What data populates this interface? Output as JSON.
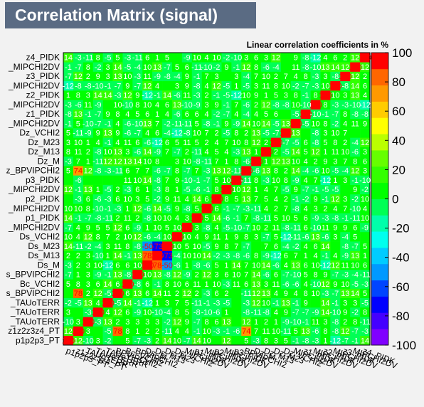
{
  "chart_data": {
    "type": "heatmap",
    "title": "Correlation Matrix (signal)",
    "subtitle": "Linear correlation coefficients in %",
    "variables": [
      "p1p2p3_PT",
      "z1z2z3z4_PT",
      "...TAUoTERR",
      "...TAUoTERR",
      "..._TAUoTERR",
      "...s_BPVIPCHI2",
      "Bc_VCHI2",
      "...s_BPVIPCHI2",
      "Ds_M",
      "Ds_M13",
      "Ds_M23",
      "Ds_VCHI2",
      "..._MIPCHI2DV",
      "p1_PIDK",
      "..._MIPCHI2DV",
      "p2_PIDK",
      "..._MIPCHI2DV",
      "p3_PIDK",
      "...z_BPVIPCHI2",
      "Dz_M",
      "Dz_M13",
      "Dz_M23",
      "Dz_VCHI2",
      "..._MIPCHI2DV",
      "z1_PIDK",
      "..._MIPCHI2DV",
      "z2_PIDK",
      "..._MIPCHI2DV",
      "z3_PIDK",
      "..._MIPCHI2DV",
      "z4_PIDK"
    ],
    "y_tick_labels": [
      "p1p2p3_PT",
      "z1z2z3z4_PT",
      "_TAUoTERR",
      "_TAUoTERR",
      "_TAUoTERR",
      "s_BPVIPCHI2",
      "Bc_VCHI2",
      "s_BPVIPCHI2",
      "Ds_M",
      "Ds_M13",
      "Ds_M23",
      "Ds_VCHI2",
      "_MIPCHI2DV",
      "p1_PIDK",
      "_MIPCHI2DV",
      "p2_PIDK",
      "_MIPCHI2DV",
      "p3_PIDK",
      "z_BPVIPCHI2",
      "Dz_M",
      "Dz_M13",
      "Dz_M23",
      "Dz_VCHI2",
      "_MIPCHI2DV",
      "z1_PIDK",
      "_MIPCHI2DV",
      "z2_PIDK",
      "_MIPCHI2DV",
      "z3_PIDK",
      "_MIPCHI2DV",
      "z4_PIDK"
    ],
    "x_tick_labels": [
      "p1p2p3_PT",
      "z1z2z3z4_PT",
      "TAUoTERR",
      "TAUoTERR",
      "TAUoTERR",
      "BPVIPCHI2",
      "Bc_VCHI2",
      "BPVIPCHI2",
      "Ds_M",
      "Ds_M13",
      "Ds_M23",
      "Ds_VCHI2",
      "MIPCHI2DV",
      "p1_PIDK",
      "MIPCHI2DV",
      "p2_PIDK",
      "MIPCHI2DV",
      "p3_PIDK",
      "BPVIPCHI2",
      "Dz_M",
      "Dz_M13",
      "Dz_M23",
      "Dz_VCHI2",
      "MIPCHI2DV",
      "z1_PIDK",
      "MIPCHI2DV",
      "z2_PIDK",
      "MIPCHI2DV",
      "z3_PIDK",
      "MIPCHI2DV",
      "z4_PIDK"
    ],
    "x_labels_note": "x tick labels are drawn rotated and heavily overlapping",
    "zlim": [
      -100,
      100
    ],
    "z_ticks": [
      -100,
      -80,
      -60,
      -40,
      -20,
      0,
      20,
      40,
      60,
      80,
      100
    ],
    "palette_colors": [
      "#8000ff",
      "#4400ff",
      "#0000ff",
      "#0044ff",
      "#0099ff",
      "#00ccff",
      "#00ffee",
      "#00ffaa",
      "#00ff55",
      "#00ff00",
      "#33ff00",
      "#66ff00",
      "#bbff00",
      "#ffff00",
      "#ffcc00",
      "#ff9900",
      "#ff6600",
      "#ff0000"
    ],
    "diagonal": 100,
    "notable_cells": [
      {
        "row": "Ds_M23",
        "col": "Ds_M13",
        "value": -73
      },
      {
        "row": "Ds_M23",
        "col": "Ds_M",
        "value": -50
      },
      {
        "row": "Ds_M13",
        "col": "Ds_M",
        "value": 78
      },
      {
        "row": "...s_BPVIPCHI2",
        "col": "z1z2z3z4_PT",
        "value": 78
      },
      {
        "row": "...z_BPVIPCHI2",
        "col": "z1z2z3z4_PT",
        "value": 74
      },
      {
        "row": "z4_PIDK",
        "col": "z2_PIDK",
        "value": 4
      }
    ]
  }
}
